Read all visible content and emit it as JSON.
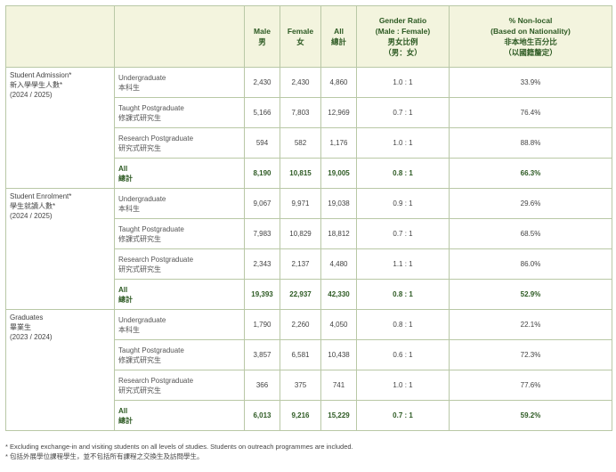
{
  "header": {
    "male": "Male",
    "male_zh": "男",
    "female": "Female",
    "female_zh": "女",
    "all": "All",
    "all_zh": "總計",
    "ratio_1": "Gender Ratio",
    "ratio_2": "(Male : Female)",
    "ratio_zh1": "男女比例",
    "ratio_zh2": "（男：女）",
    "nonlocal_1": "% Non-local",
    "nonlocal_2": "(Based on Nationality)",
    "nonlocal_zh1": "非本地生百分比",
    "nonlocal_zh2": "（以國籍釐定）"
  },
  "groups": [
    {
      "name": "Student Admission*",
      "name_zh": "新入學學生人數*",
      "period": "(2024 / 2025)",
      "rows": [
        {
          "level": "Undergraduate",
          "level_zh": "本科生",
          "male": "2,430",
          "female": "2,430",
          "all": "4,860",
          "ratio": "1.0 : 1",
          "nonlocal": "33.9%"
        },
        {
          "level": "Taught Postgraduate",
          "level_zh": "修課式研究生",
          "male": "5,166",
          "female": "7,803",
          "all": "12,969",
          "ratio": "0.7 : 1",
          "nonlocal": "76.4%"
        },
        {
          "level": "Research Postgraduate",
          "level_zh": "研究式研究生",
          "male": "594",
          "female": "582",
          "all": "1,176",
          "ratio": "1.0 : 1",
          "nonlocal": "88.8%"
        },
        {
          "level": "All",
          "level_zh": "總計",
          "male": "8,190",
          "female": "10,815",
          "all": "19,005",
          "ratio": "0.8 : 1",
          "nonlocal": "66.3%"
        }
      ]
    },
    {
      "name": "Student Enrolment*",
      "name_zh": "學生就讀人數*",
      "period": "(2024 / 2025)",
      "rows": [
        {
          "level": "Undergraduate",
          "level_zh": "本科生",
          "male": "9,067",
          "female": "9,971",
          "all": "19,038",
          "ratio": "0.9 : 1",
          "nonlocal": "29.6%"
        },
        {
          "level": "Taught Postgraduate",
          "level_zh": "修課式研究生",
          "male": "7,983",
          "female": "10,829",
          "all": "18,812",
          "ratio": "0.7 : 1",
          "nonlocal": "68.5%"
        },
        {
          "level": "Research Postgraduate",
          "level_zh": "研究式研究生",
          "male": "2,343",
          "female": "2,137",
          "all": "4,480",
          "ratio": "1.1 : 1",
          "nonlocal": "86.0%"
        },
        {
          "level": "All",
          "level_zh": "總計",
          "male": "19,393",
          "female": "22,937",
          "all": "42,330",
          "ratio": "0.8 : 1",
          "nonlocal": "52.9%"
        }
      ]
    },
    {
      "name": "Graduates",
      "name_zh": "畢業生",
      "period": "(2023 / 2024)",
      "rows": [
        {
          "level": "Undergraduate",
          "level_zh": "本科生",
          "male": "1,790",
          "female": "2,260",
          "all": "4,050",
          "ratio": "0.8 : 1",
          "nonlocal": "22.1%"
        },
        {
          "level": "Taught Postgraduate",
          "level_zh": "修課式研究生",
          "male": "3,857",
          "female": "6,581",
          "all": "10,438",
          "ratio": "0.6 : 1",
          "nonlocal": "72.3%"
        },
        {
          "level": "Research Postgraduate",
          "level_zh": "研究式研究生",
          "male": "366",
          "female": "375",
          "all": "741",
          "ratio": "1.0 : 1",
          "nonlocal": "77.6%"
        },
        {
          "level": "All",
          "level_zh": "總計",
          "male": "6,013",
          "female": "9,216",
          "all": "15,229",
          "ratio": "0.7 : 1",
          "nonlocal": "59.2%"
        }
      ]
    }
  ],
  "notes": {
    "en": "* Excluding exchange-in and visiting students on all levels of studies. Students on outreach programmes are included.",
    "zh": "* 包括外展學位課程學生，並不包括所有課程之交換生及訪問學生。"
  }
}
